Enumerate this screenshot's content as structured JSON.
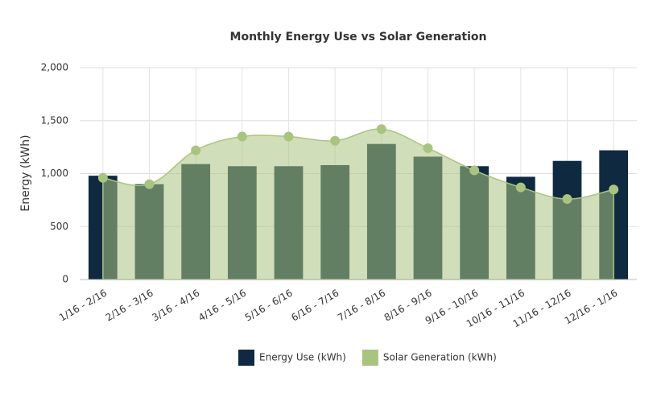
{
  "chart_data": {
    "type": "bar-area",
    "title": "Monthly Energy Use vs Solar Generation",
    "y_label": "Energy (kWh)",
    "categories": [
      "1/16 - 2/16",
      "2/16 - 3/16",
      "3/16 - 4/16",
      "4/16 - 5/16",
      "5/16 - 6/16",
      "6/16 - 7/16",
      "7/16 - 8/16",
      "8/16 - 9/16",
      "9/16 - 10/16",
      "10/16 - 11/16",
      "11/16 - 12/16",
      "12/16 - 1/16"
    ],
    "series": [
      {
        "name": "Energy Use (kWh)",
        "color": "#0f2a40",
        "type": "bar",
        "values": [
          980,
          900,
          1090,
          1070,
          1070,
          1080,
          1280,
          1160,
          1070,
          970,
          1120,
          1220
        ]
      },
      {
        "name": "Solar Generation (kWh)",
        "color": "#a9c47f",
        "type": "area",
        "values": [
          960,
          900,
          1220,
          1350,
          1350,
          1310,
          1420,
          1240,
          1030,
          870,
          760,
          850
        ]
      }
    ],
    "ylim": [
      0,
      2000
    ],
    "yticks": [
      0,
      500,
      {
        "value": 1000,
        "label": "1,000"
      },
      {
        "value": 1500,
        "label": "1,500"
      },
      {
        "value": 2000,
        "label": "2,000"
      }
    ],
    "grid": true,
    "legend": "bottom"
  }
}
